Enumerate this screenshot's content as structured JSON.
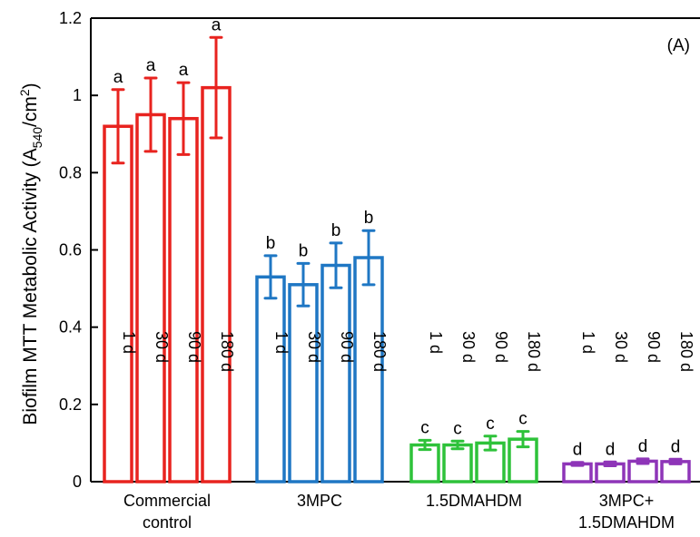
{
  "chart_data": {
    "type": "bar",
    "panel_label": "(A)",
    "ylabel": {
      "main": "Biofilm MTT Metabolic Activity (A",
      "sub": "540",
      "mid": "/cm",
      "sup": "2",
      "end": ")"
    },
    "ylim": [
      0,
      1.2
    ],
    "yticks": [
      "0",
      "0.2",
      "0.4",
      "0.6",
      "0.8",
      "1",
      "1.2"
    ],
    "ytick_values": [
      0,
      0.2,
      0.4,
      0.6,
      0.8,
      1.0,
      1.2
    ],
    "times": [
      "1 d",
      "30 d",
      "90 d",
      "180 d"
    ],
    "groups": [
      {
        "label_lines": [
          "Commercial",
          "control"
        ],
        "color": "#e8231f",
        "values": [
          0.92,
          0.95,
          0.94,
          1.02
        ],
        "errors": [
          0.095,
          0.095,
          0.093,
          0.13
        ],
        "letters": [
          "a",
          "a",
          "a",
          "a"
        ]
      },
      {
        "label_lines": [
          "3MPC"
        ],
        "color": "#1f77c4",
        "values": [
          0.53,
          0.51,
          0.56,
          0.58
        ],
        "errors": [
          0.055,
          0.055,
          0.058,
          0.07
        ],
        "letters": [
          "b",
          "b",
          "b",
          "b"
        ]
      },
      {
        "label_lines": [
          "1.5DMAHDM"
        ],
        "color": "#2ec23a",
        "values": [
          0.095,
          0.095,
          0.1,
          0.11
        ],
        "errors": [
          0.012,
          0.01,
          0.018,
          0.02
        ],
        "letters": [
          "c",
          "c",
          "c",
          "c"
        ]
      },
      {
        "label_lines": [
          "3MPC+",
          "1.5DMAHDM"
        ],
        "color": "#8e35b8",
        "values": [
          0.046,
          0.046,
          0.053,
          0.052
        ],
        "errors": [
          0.004,
          0.005,
          0.006,
          0.006
        ],
        "letters": [
          "d",
          "d",
          "d",
          "d"
        ]
      }
    ]
  }
}
